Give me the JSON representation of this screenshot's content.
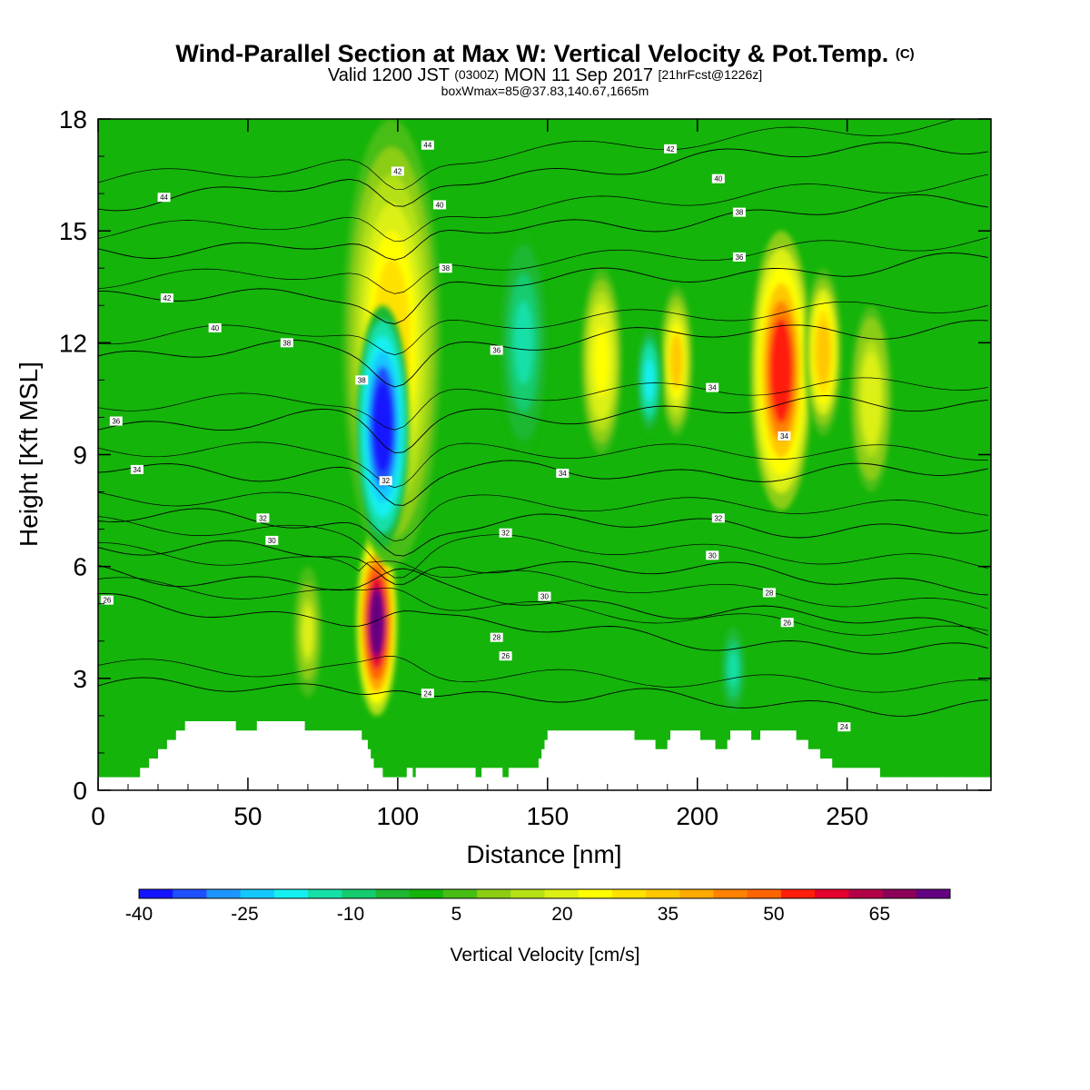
{
  "title": {
    "main": "Wind-Parallel Section at Max W: Vertical Velocity & Pot.Temp.",
    "main_mark": "(C)",
    "sub_a": "Valid 1200 JST",
    "sub_b": "(0300Z)",
    "sub_c": "MON 11 Sep 2017",
    "sub_d": "[21hrFcst@1226z]",
    "sub2": "boxWmax=85@37.83,140.67,1665m"
  },
  "chart_data": {
    "type": "heatmap",
    "xlabel": "Distance [nm]",
    "ylabel": "Height [Kft MSL]",
    "xlim": [
      0,
      298
    ],
    "ylim": [
      0,
      18
    ],
    "x_ticks": [
      0,
      50,
      100,
      150,
      200,
      250
    ],
    "y_ticks": [
      0,
      3,
      6,
      9,
      12,
      15,
      18
    ],
    "colorbar": {
      "label": "Vertical Velocity [cm/s]",
      "tick_labels": [
        "-40",
        "-25",
        "-10",
        "5",
        "20",
        "35",
        "50",
        "65"
      ],
      "tick_values": [
        -40,
        -25,
        -10,
        5,
        20,
        35,
        50,
        65
      ],
      "range": [
        -40,
        75
      ],
      "colors": [
        "#1414ff",
        "#1e50ff",
        "#1e96ff",
        "#14c8ff",
        "#14f0f0",
        "#14e0a8",
        "#14cc6e",
        "#1eb832",
        "#14b40a",
        "#46be14",
        "#8ccd14",
        "#b4e114",
        "#dcf014",
        "#ffff00",
        "#ffe100",
        "#ffc800",
        "#ffaa00",
        "#ff8200",
        "#ff6400",
        "#ff1e0a",
        "#e6002d",
        "#b40046",
        "#8c005a",
        "#640082"
      ]
    },
    "vertical_velocity_features": [
      {
        "x_center": 93,
        "z_bottom": 2.0,
        "z_top": 7.0,
        "w": 72,
        "note": "strong updraft"
      },
      {
        "x_center": 98,
        "z_bottom": 6.0,
        "z_top": 18.0,
        "w": 30
      },
      {
        "x_center": 95,
        "z_bottom": 6.5,
        "z_top": 13.0,
        "w": -38,
        "note": "strong downdraft"
      },
      {
        "x_center": 70,
        "z_bottom": 2.5,
        "z_top": 6.0,
        "w": 18
      },
      {
        "x_center": 168,
        "z_bottom": 9.0,
        "z_top": 14.0,
        "w": 26
      },
      {
        "x_center": 193,
        "z_bottom": 9.5,
        "z_top": 13.5,
        "w": 32
      },
      {
        "x_center": 228,
        "z_bottom": 7.5,
        "z_top": 15.0,
        "w": 52
      },
      {
        "x_center": 242,
        "z_bottom": 9.5,
        "z_top": 14.0,
        "w": 34
      },
      {
        "x_center": 258,
        "z_bottom": 8.0,
        "z_top": 13.0,
        "w": 22
      },
      {
        "x_center": 184,
        "z_bottom": 9.5,
        "z_top": 12.5,
        "w": -18
      },
      {
        "x_center": 142,
        "z_bottom": 9.0,
        "z_top": 15.0,
        "w": -12
      },
      {
        "x_center": 212,
        "z_bottom": 2.0,
        "z_top": 4.5,
        "w": -12
      }
    ],
    "potential_temperature_contours": [
      {
        "label": "24",
        "z_start": 2.8,
        "z_end": 2.2
      },
      {
        "label": "26",
        "z_start": 5.0,
        "z_end": 3.6
      },
      {
        "label": "28",
        "z_start": 5.9,
        "z_end": 4.3
      },
      {
        "label": "30",
        "z_start": 6.6,
        "z_end": 5.5
      },
      {
        "label": "32",
        "z_start": 7.3,
        "z_end": 7.0
      },
      {
        "label": "34",
        "z_start": 8.6,
        "z_end": 8.5
      },
      {
        "label": "36",
        "z_start": 9.8,
        "z_end": 10.4
      },
      {
        "label": "38",
        "z_start": 11.6,
        "z_end": 12.5
      },
      {
        "label": "40",
        "z_start": 13.1,
        "z_end": 14.2
      },
      {
        "label": "42",
        "z_start": 14.4,
        "z_end": 15.8
      },
      {
        "label": "44",
        "z_start": 15.8,
        "z_end": 17.4
      }
    ],
    "contour_labels": [
      {
        "text": "44",
        "x": 22,
        "z": 15.9
      },
      {
        "text": "42",
        "x": 23,
        "z": 13.2
      },
      {
        "text": "40",
        "x": 39,
        "z": 12.4
      },
      {
        "text": "38",
        "x": 63,
        "z": 12.0
      },
      {
        "text": "38",
        "x": 88,
        "z": 11.0
      },
      {
        "text": "36",
        "x": 6,
        "z": 9.9
      },
      {
        "text": "34",
        "x": 13,
        "z": 8.6
      },
      {
        "text": "32",
        "x": 55,
        "z": 7.3
      },
      {
        "text": "30",
        "x": 58,
        "z": 6.7
      },
      {
        "text": "26",
        "x": 3,
        "z": 5.1
      },
      {
        "text": "44",
        "x": 110,
        "z": 17.3
      },
      {
        "text": "42",
        "x": 100,
        "z": 16.6
      },
      {
        "text": "40",
        "x": 114,
        "z": 15.7
      },
      {
        "text": "38",
        "x": 116,
        "z": 14.0
      },
      {
        "text": "36",
        "x": 133,
        "z": 11.8
      },
      {
        "text": "34",
        "x": 155,
        "z": 8.5
      },
      {
        "text": "32",
        "x": 136,
        "z": 6.9
      },
      {
        "text": "30",
        "x": 149,
        "z": 5.2
      },
      {
        "text": "28",
        "x": 133,
        "z": 4.1
      },
      {
        "text": "26",
        "x": 136,
        "z": 3.6
      },
      {
        "text": "24",
        "x": 110,
        "z": 2.6
      },
      {
        "text": "32",
        "x": 96,
        "z": 8.3
      },
      {
        "text": "42",
        "x": 191,
        "z": 17.2
      },
      {
        "text": "40",
        "x": 207,
        "z": 16.4
      },
      {
        "text": "38",
        "x": 214,
        "z": 15.5
      },
      {
        "text": "36",
        "x": 214,
        "z": 14.3
      },
      {
        "text": "34",
        "x": 205,
        "z": 10.8
      },
      {
        "text": "34",
        "x": 229,
        "z": 9.5
      },
      {
        "text": "32",
        "x": 207,
        "z": 7.3
      },
      {
        "text": "30",
        "x": 205,
        "z": 6.3
      },
      {
        "text": "28",
        "x": 224,
        "z": 5.3
      },
      {
        "text": "26",
        "x": 230,
        "z": 4.5
      },
      {
        "text": "24",
        "x": 249,
        "z": 1.7
      }
    ],
    "terrain_steps": [
      [
        0,
        0.35
      ],
      [
        12,
        0.35
      ],
      [
        14,
        0.6
      ],
      [
        17,
        0.85
      ],
      [
        20,
        1.1
      ],
      [
        23,
        1.35
      ],
      [
        26,
        1.6
      ],
      [
        29,
        1.85
      ],
      [
        45,
        1.85
      ],
      [
        46,
        1.6
      ],
      [
        52,
        1.6
      ],
      [
        53,
        1.85
      ],
      [
        68,
        1.85
      ],
      [
        69,
        1.6
      ],
      [
        87,
        1.6
      ],
      [
        88,
        1.35
      ],
      [
        90,
        1.1
      ],
      [
        91,
        0.85
      ],
      [
        92,
        0.6
      ],
      [
        95,
        0.35
      ],
      [
        102,
        0.35
      ],
      [
        103,
        0.6
      ],
      [
        105,
        0.35
      ],
      [
        106,
        0.6
      ],
      [
        125,
        0.6
      ],
      [
        126,
        0.35
      ],
      [
        128,
        0.6
      ],
      [
        134,
        0.6
      ],
      [
        135,
        0.35
      ],
      [
        137,
        0.6
      ],
      [
        146,
        0.6
      ],
      [
        147,
        0.85
      ],
      [
        148,
        1.1
      ],
      [
        149,
        1.35
      ],
      [
        150,
        1.6
      ],
      [
        178,
        1.6
      ],
      [
        179,
        1.35
      ],
      [
        185,
        1.35
      ],
      [
        186,
        1.1
      ],
      [
        189,
        1.1
      ],
      [
        190,
        1.35
      ],
      [
        191,
        1.6
      ],
      [
        200,
        1.6
      ],
      [
        201,
        1.35
      ],
      [
        205,
        1.35
      ],
      [
        206,
        1.1
      ],
      [
        209,
        1.1
      ],
      [
        210,
        1.35
      ],
      [
        211,
        1.6
      ],
      [
        217,
        1.6
      ],
      [
        218,
        1.35
      ],
      [
        220,
        1.35
      ],
      [
        221,
        1.6
      ],
      [
        232,
        1.6
      ],
      [
        233,
        1.35
      ],
      [
        236,
        1.35
      ],
      [
        237,
        1.1
      ],
      [
        240,
        1.1
      ],
      [
        241,
        0.85
      ],
      [
        244,
        0.85
      ],
      [
        245,
        0.6
      ],
      [
        260,
        0.6
      ],
      [
        261,
        0.35
      ],
      [
        298,
        0.35
      ]
    ]
  }
}
